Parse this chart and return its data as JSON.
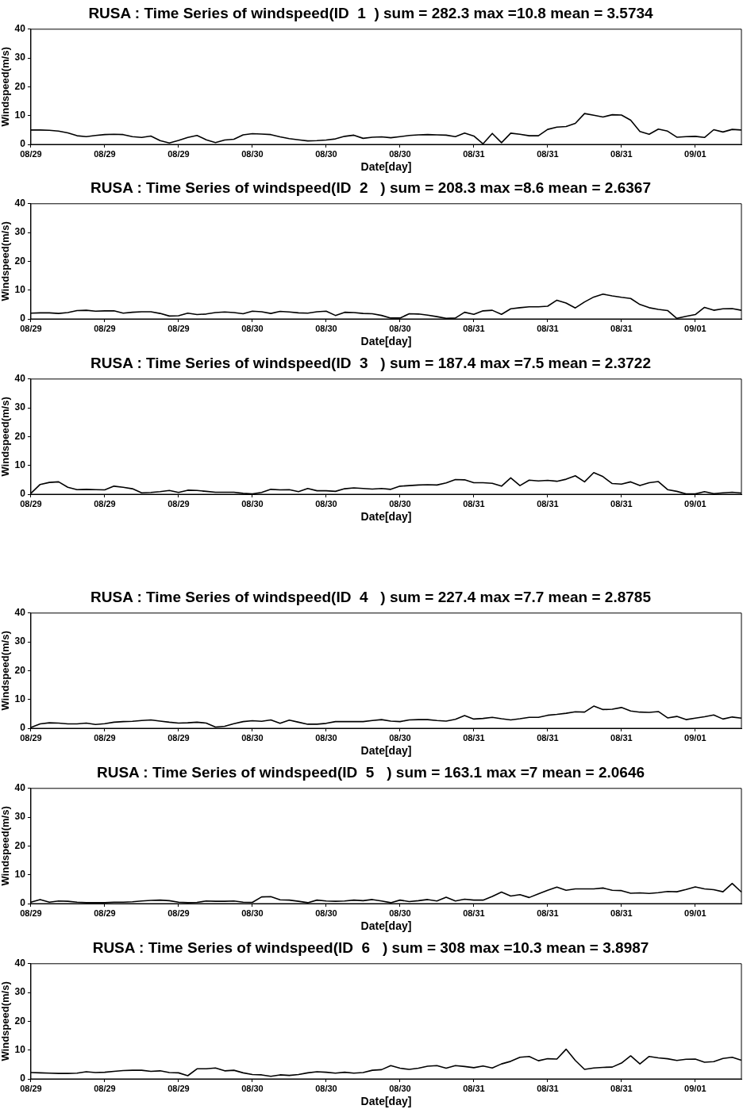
{
  "chart_data": [
    {
      "type": "line",
      "title": "RUSA : Time Series of windspeed(ID  1  ) sum = 282.3 max =10.8 mean = 3.5734",
      "xlabel": "Date[day]",
      "ylabel": "Windspeed(m/s)",
      "color": "#000000",
      "marker": "none",
      "grid": false,
      "ylim": [
        0,
        40
      ],
      "yticks": [
        0,
        10,
        20,
        30,
        40
      ],
      "categories": [
        "08/29",
        null,
        null,
        null,
        null,
        null,
        null,
        null,
        "08/29",
        null,
        null,
        null,
        null,
        null,
        null,
        null,
        "08/29",
        null,
        null,
        null,
        null,
        null,
        null,
        null,
        "08/30",
        null,
        null,
        null,
        null,
        null,
        null,
        null,
        "08/30",
        null,
        null,
        null,
        null,
        null,
        null,
        null,
        "08/30",
        null,
        null,
        null,
        null,
        null,
        null,
        null,
        "08/31",
        null,
        null,
        null,
        null,
        null,
        null,
        null,
        "08/31",
        null,
        null,
        null,
        null,
        null,
        null,
        null,
        "08/31",
        null,
        null,
        null,
        null,
        null,
        null,
        null,
        "09/01",
        null,
        null,
        null,
        null,
        null
      ],
      "values": [
        5,
        5,
        4.9,
        4.6,
        4,
        3,
        2.7,
        3.1,
        3.4,
        3.5,
        3.4,
        2.7,
        2.4,
        2.9,
        1.3,
        0.5,
        1.4,
        2.4,
        3.1,
        1.6,
        0.6,
        1.5,
        1.8,
        3.3,
        3.7,
        3.6,
        3.4,
        2.6,
        2,
        1.6,
        1.2,
        1.3,
        1.5,
        1.9,
        2.8,
        3.2,
        2.1,
        2.5,
        2.6,
        2.3,
        2.7,
        3.1,
        3.3,
        3.4,
        3.3,
        3.2,
        2.7,
        3.9,
        2.9,
        0.2,
        3.8,
        0.6,
        3.9,
        3.5,
        3,
        3,
        5.2,
        6,
        6.2,
        7.3,
        10.7,
        10.1,
        9.5,
        10.3,
        10.2,
        8.4,
        4.5,
        3.5,
        5.3,
        4.6,
        2.5,
        2.7,
        2.8,
        2.4,
        5.1,
        4.3,
        5.2,
        5
      ]
    },
    {
      "type": "line",
      "title": "RUSA : Time Series of windspeed(ID  2   ) sum = 208.3 max =8.6 mean = 2.6367",
      "xlabel": "Date[day]",
      "ylabel": "Windspeed(m/s)",
      "color": "#000000",
      "marker": "none",
      "grid": false,
      "ylim": [
        0,
        40
      ],
      "yticks": [
        0,
        10,
        20,
        30,
        40
      ],
      "categories": [
        "08/29",
        null,
        null,
        null,
        null,
        null,
        null,
        null,
        "08/29",
        null,
        null,
        null,
        null,
        null,
        null,
        null,
        "08/29",
        null,
        null,
        null,
        null,
        null,
        null,
        null,
        "08/30",
        null,
        null,
        null,
        null,
        null,
        null,
        null,
        "08/30",
        null,
        null,
        null,
        null,
        null,
        null,
        null,
        "08/30",
        null,
        null,
        null,
        null,
        null,
        null,
        null,
        "08/31",
        null,
        null,
        null,
        null,
        null,
        null,
        null,
        "08/31",
        null,
        null,
        null,
        null,
        null,
        null,
        null,
        "08/31",
        null,
        null,
        null,
        null,
        null,
        null,
        null,
        "09/01",
        null,
        null,
        null,
        null,
        null
      ],
      "values": [
        2,
        2.1,
        2.1,
        1.9,
        2.2,
        2.9,
        3,
        2.7,
        2.8,
        2.8,
        2,
        2.3,
        2.5,
        2.5,
        1.9,
        1,
        1.1,
        2,
        1.5,
        1.7,
        2.2,
        2.4,
        2.2,
        1.8,
        2.7,
        2.5,
        1.9,
        2.6,
        2.4,
        2.1,
        2,
        2.5,
        2.7,
        1.2,
        2.3,
        2.2,
        1.9,
        1.8,
        1.2,
        0.3,
        0.3,
        1.8,
        1.7,
        1.3,
        0.8,
        0.2,
        0.3,
        2.3,
        1.6,
        2.8,
        3,
        1.6,
        3.5,
        3.9,
        4.2,
        4.2,
        4.4,
        6.5,
        5.5,
        3.8,
        5.9,
        7.6,
        8.6,
        8,
        7.5,
        7.1,
        5,
        3.9,
        3.3,
        2.9,
        0.2,
        0.9,
        1.5,
        4,
        3,
        3.5,
        3.6,
        3
      ]
    },
    {
      "type": "line",
      "title": "RUSA : Time Series of windspeed(ID  3   ) sum = 187.4 max =7.5 mean = 2.3722",
      "xlabel": "Date[day]",
      "ylabel": "Windspeed(m/s)",
      "color": "#000000",
      "marker": "none",
      "grid": false,
      "ylim": [
        0,
        40
      ],
      "yticks": [
        0,
        10,
        20,
        30,
        40
      ],
      "categories": [
        "08/29",
        null,
        null,
        null,
        null,
        null,
        null,
        null,
        "08/29",
        null,
        null,
        null,
        null,
        null,
        null,
        null,
        "08/29",
        null,
        null,
        null,
        null,
        null,
        null,
        null,
        "08/30",
        null,
        null,
        null,
        null,
        null,
        null,
        null,
        "08/30",
        null,
        null,
        null,
        null,
        null,
        null,
        null,
        "08/30",
        null,
        null,
        null,
        null,
        null,
        null,
        null,
        "08/31",
        null,
        null,
        null,
        null,
        null,
        null,
        null,
        "08/31",
        null,
        null,
        null,
        null,
        null,
        null,
        null,
        "08/31",
        null,
        null,
        null,
        null,
        null,
        null,
        null,
        "09/01",
        null,
        null,
        null,
        null,
        null
      ],
      "values": [
        0.3,
        3.4,
        4.1,
        4.3,
        2.4,
        1.6,
        1.7,
        1.6,
        1.5,
        2.8,
        2.4,
        1.9,
        0.5,
        0.6,
        0.9,
        1.3,
        0.6,
        1.4,
        1.3,
        1,
        0.7,
        0.7,
        0.7,
        0.3,
        0.1,
        0.6,
        1.7,
        1.5,
        1.6,
        0.9,
        2,
        1.2,
        1.2,
        1,
        1.9,
        2.2,
        2,
        1.8,
        2,
        1.7,
        2.8,
        3,
        3.2,
        3.3,
        3.2,
        3.9,
        5.1,
        5,
        4,
        4,
        3.8,
        2.8,
        5.7,
        3,
        4.9,
        4.6,
        4.8,
        4.5,
        5.2,
        6.4,
        4.3,
        7.5,
        6.1,
        3.7,
        3.5,
        4.3,
        3,
        4,
        4.4,
        1.6,
        1,
        0.1,
        0.1,
        0.9,
        0.2,
        0.5,
        0.7,
        0.4
      ]
    },
    {
      "type": "line",
      "title": "RUSA : Time Series of windspeed(ID  4   ) sum = 227.4 max =7.7 mean = 2.8785",
      "xlabel": "Date[day]",
      "ylabel": "Windspeed(m/s)",
      "color": "#000000",
      "marker": "none",
      "grid": false,
      "ylim": [
        0,
        40
      ],
      "yticks": [
        0,
        10,
        20,
        30,
        40
      ],
      "categories": [
        "08/29",
        null,
        null,
        null,
        null,
        null,
        null,
        null,
        "08/29",
        null,
        null,
        null,
        null,
        null,
        null,
        null,
        "08/29",
        null,
        null,
        null,
        null,
        null,
        null,
        null,
        "08/30",
        null,
        null,
        null,
        null,
        null,
        null,
        null,
        "08/30",
        null,
        null,
        null,
        null,
        null,
        null,
        null,
        "08/30",
        null,
        null,
        null,
        null,
        null,
        null,
        null,
        "08/31",
        null,
        null,
        null,
        null,
        null,
        null,
        null,
        "08/31",
        null,
        null,
        null,
        null,
        null,
        null,
        null,
        "08/31",
        null,
        null,
        null,
        null,
        null,
        null,
        null,
        "09/01",
        null,
        null,
        null,
        null,
        null
      ],
      "values": [
        0.3,
        1.5,
        1.9,
        1.8,
        1.5,
        1.5,
        1.8,
        1.3,
        1.6,
        2.1,
        2.3,
        2.4,
        2.7,
        2.9,
        2.5,
        2.1,
        1.8,
        1.9,
        2.1,
        1.8,
        0.4,
        0.7,
        1.6,
        2.3,
        2.6,
        2.4,
        2.9,
        1.7,
        2.8,
        2.1,
        1.4,
        1.4,
        1.7,
        2.3,
        2.3,
        2.3,
        2.3,
        2.7,
        3,
        2.5,
        2.3,
        2.9,
        3,
        3,
        2.7,
        2.5,
        3.1,
        4.4,
        3.2,
        3.4,
        3.8,
        3.3,
        2.9,
        3.3,
        3.8,
        3.8,
        4.5,
        4.8,
        5.2,
        5.7,
        5.6,
        7.7,
        6.5,
        6.6,
        7.2,
        6,
        5.6,
        5.5,
        5.8,
        3.6,
        4.1,
        3,
        3.5,
        4,
        4.6,
        3.2,
        3.9,
        3.5
      ]
    },
    {
      "type": "line",
      "title": "RUSA : Time Series of windspeed(ID  5   ) sum = 163.1 max =7 mean = 2.0646",
      "xlabel": "Date[day]",
      "ylabel": "Windspeed(m/s)",
      "color": "#000000",
      "marker": "none",
      "grid": false,
      "ylim": [
        0,
        40
      ],
      "yticks": [
        0,
        10,
        20,
        30,
        40
      ],
      "categories": [
        "08/29",
        null,
        null,
        null,
        null,
        null,
        null,
        null,
        "08/29",
        null,
        null,
        null,
        null,
        null,
        null,
        null,
        "08/29",
        null,
        null,
        null,
        null,
        null,
        null,
        null,
        "08/30",
        null,
        null,
        null,
        null,
        null,
        null,
        null,
        "08/30",
        null,
        null,
        null,
        null,
        null,
        null,
        null,
        "08/30",
        null,
        null,
        null,
        null,
        null,
        null,
        null,
        "08/31",
        null,
        null,
        null,
        null,
        null,
        null,
        null,
        "08/31",
        null,
        null,
        null,
        null,
        null,
        null,
        null,
        "08/31",
        null,
        null,
        null,
        null,
        null,
        null,
        null,
        "09/01",
        null,
        null,
        null,
        null,
        null
      ],
      "values": [
        0.5,
        1.4,
        0.5,
        0.9,
        0.8,
        0.5,
        0.3,
        0.3,
        0.3,
        0.5,
        0.5,
        0.6,
        0.9,
        1.1,
        1.2,
        1,
        0.5,
        0.3,
        0.4,
        0.9,
        0.8,
        0.8,
        0.9,
        0.5,
        0.4,
        2.3,
        2.4,
        1.3,
        1.2,
        0.8,
        0.3,
        1.2,
        0.9,
        0.8,
        0.9,
        1.2,
        1,
        1.4,
        0.9,
        0.3,
        1.2,
        0.7,
        1,
        1.4,
        0.9,
        2.2,
        0.9,
        1.5,
        1.2,
        1.2,
        2.5,
        4,
        2.6,
        3.1,
        2.1,
        3.4,
        4.6,
        5.7,
        4.6,
        5.1,
        5.1,
        5.1,
        5.4,
        4.6,
        4.5,
        3.6,
        3.7,
        3.5,
        3.8,
        4.2,
        4.1,
        4.9,
        5.8,
        5.1,
        4.8,
        4.1,
        7,
        4
      ]
    },
    {
      "type": "line",
      "title": "RUSA : Time Series of windspeed(ID  6   ) sum = 308 max =10.3 mean = 3.8987",
      "xlabel": "Date[day]",
      "ylabel": "Windspeed(m/s)",
      "color": "#000000",
      "marker": "none",
      "grid": false,
      "ylim": [
        0,
        40
      ],
      "yticks": [
        0,
        10,
        20,
        30,
        40
      ],
      "categories": [
        "08/29",
        null,
        null,
        null,
        null,
        null,
        null,
        null,
        "08/29",
        null,
        null,
        null,
        null,
        null,
        null,
        null,
        "08/29",
        null,
        null,
        null,
        null,
        null,
        null,
        null,
        "08/30",
        null,
        null,
        null,
        null,
        null,
        null,
        null,
        "08/30",
        null,
        null,
        null,
        null,
        null,
        null,
        null,
        "08/30",
        null,
        null,
        null,
        null,
        null,
        null,
        null,
        "08/31",
        null,
        null,
        null,
        null,
        null,
        null,
        null,
        "08/31",
        null,
        null,
        null,
        null,
        null,
        null,
        null,
        "08/31",
        null,
        null,
        null,
        null,
        null,
        null,
        null,
        "09/01",
        null,
        null,
        null,
        null,
        null
      ],
      "values": [
        2.2,
        2.1,
        2,
        1.9,
        1.9,
        2,
        2.5,
        2.2,
        2.3,
        2.6,
        2.9,
        3,
        3,
        2.6,
        2.8,
        2.2,
        2.1,
        1.1,
        3.5,
        3.5,
        3.8,
        2.8,
        3,
        2.1,
        1.5,
        1.4,
        0.9,
        1.4,
        1.2,
        1.5,
        2.1,
        2.5,
        2.3,
        2,
        2.3,
        2,
        2.2,
        3,
        3.2,
        4.6,
        3.7,
        3.3,
        3.7,
        4.4,
        4.6,
        3.7,
        4.6,
        4.3,
        3.9,
        4.5,
        3.8,
        5.2,
        6.1,
        7.5,
        7.8,
        6.3,
        7,
        6.9,
        10.3,
        6.4,
        3.3,
        3.8,
        4,
        4.1,
        5.5,
        8,
        5.2,
        7.8,
        7.3,
        7,
        6.4,
        6.8,
        6.9,
        5.8,
        6,
        7.1,
        7.5,
        6.5
      ]
    }
  ]
}
